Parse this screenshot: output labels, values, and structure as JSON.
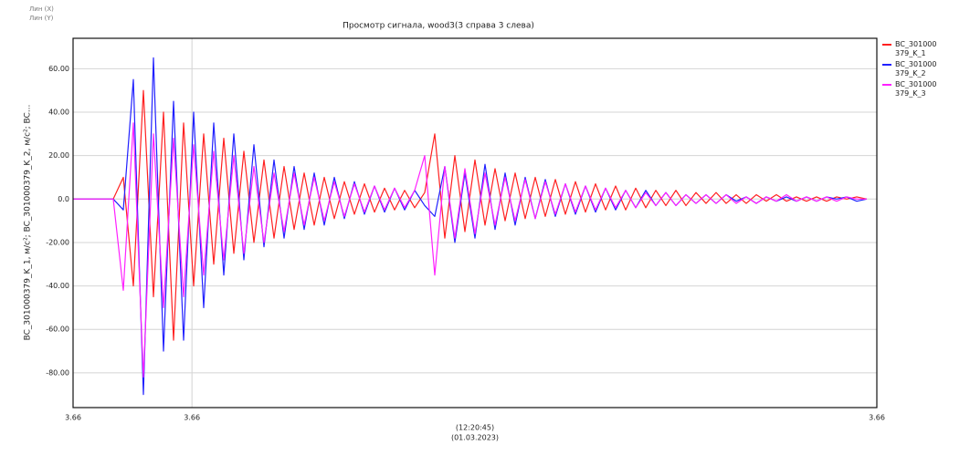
{
  "chart_data": {
    "type": "line",
    "corner_labels": [
      "Лин (X)",
      "Лин (Y)"
    ],
    "title": "Просмотр сигнала, wood3(3 справа 3 слева)",
    "ylabel": "BC_301000379_K_1, м/с²; BC_301000379_K_2, м/с²; BC...",
    "xlabel": [
      "(12:20:45)",
      "(01.03.2023)"
    ],
    "xlim": [
      3.6552,
      3.6648
    ],
    "xticks": [
      {
        "value": 3.6552,
        "label": "3.66"
      },
      {
        "value": 3.65662,
        "label": "3.66"
      },
      {
        "value": 3.6648,
        "label": "3.66"
      }
    ],
    "ylim": [
      -96,
      74
    ],
    "yticks": [
      {
        "value": 60,
        "label": "60.00"
      },
      {
        "value": 40,
        "label": "40.00"
      },
      {
        "value": 20,
        "label": "20.00"
      },
      {
        "value": 0,
        "label": "0.0"
      },
      {
        "value": -20,
        "label": "-20.00"
      },
      {
        "value": -40,
        "label": "-40.00"
      },
      {
        "value": -60,
        "label": "-60.00"
      },
      {
        "value": -80,
        "label": "-80.00"
      }
    ],
    "grid": true,
    "legend": "right",
    "x": [
      3.6552,
      3.65532,
      3.65544,
      3.65556,
      3.65568,
      3.6558,
      3.65592,
      3.65604,
      3.65616,
      3.65628,
      3.6564,
      3.65652,
      3.65664,
      3.65676,
      3.65688,
      3.657,
      3.65712,
      3.65724,
      3.65736,
      3.65748,
      3.6576,
      3.65772,
      3.65784,
      3.65796,
      3.65808,
      3.6582,
      3.65832,
      3.65844,
      3.65856,
      3.65868,
      3.6588,
      3.65892,
      3.65904,
      3.65916,
      3.65928,
      3.6594,
      3.65952,
      3.65964,
      3.65976,
      3.65988,
      3.66,
      3.66012,
      3.66024,
      3.66036,
      3.66048,
      3.6606,
      3.66072,
      3.66084,
      3.66096,
      3.66108,
      3.6612,
      3.66132,
      3.66144,
      3.66156,
      3.66168,
      3.6618,
      3.66192,
      3.66204,
      3.66216,
      3.66228,
      3.6624,
      3.66252,
      3.66264,
      3.66276,
      3.66288,
      3.663,
      3.66312,
      3.66324,
      3.66336,
      3.66348,
      3.6636,
      3.66372,
      3.66384,
      3.66396,
      3.66408,
      3.6642,
      3.66432,
      3.66444,
      3.66456,
      3.66468
    ],
    "series": [
      {
        "name": "BC_301000379_K_1",
        "color": "#ff2020",
        "values": [
          0,
          0,
          0,
          0,
          0,
          10,
          -40,
          50,
          -45,
          40,
          -65,
          35,
          -40,
          30,
          -30,
          28,
          -25,
          22,
          -20,
          18,
          -18,
          15,
          -14,
          12,
          -12,
          10,
          -9,
          8,
          -7,
          7,
          -6,
          5,
          -5,
          4,
          -4,
          3,
          30,
          -18,
          20,
          -15,
          18,
          -12,
          14,
          -10,
          12,
          -9,
          10,
          -8,
          9,
          -7,
          8,
          -6,
          7,
          -5,
          6,
          -5,
          5,
          -4,
          4,
          -3,
          4,
          -3,
          3,
          -2,
          3,
          -2,
          2,
          -2,
          2,
          -1,
          2,
          -1,
          1,
          -1,
          1,
          -1,
          1,
          0,
          1,
          0
        ]
      },
      {
        "name": "BC_301000379_K_2",
        "color": "#2020ff",
        "values": [
          0,
          0,
          0,
          0,
          0,
          -5,
          55,
          -90,
          65,
          -70,
          45,
          -65,
          40,
          -50,
          35,
          -35,
          30,
          -28,
          25,
          -22,
          18,
          -18,
          15,
          -14,
          12,
          -12,
          10,
          -9,
          8,
          -7,
          6,
          -6,
          5,
          -5,
          4,
          -3,
          -8,
          15,
          -20,
          12,
          -18,
          16,
          -14,
          12,
          -12,
          10,
          -9,
          9,
          -8,
          7,
          -7,
          6,
          -6,
          5,
          -5,
          4,
          -4,
          4,
          -3,
          3,
          -3,
          2,
          -2,
          2,
          -2,
          2,
          -1,
          1,
          -2,
          1,
          -1,
          1,
          -1,
          1,
          -1,
          1,
          0,
          1,
          -1,
          0
        ]
      },
      {
        "name": "BC_301000379_K_3",
        "color": "#ff20ff",
        "values": [
          0,
          0,
          0,
          0,
          0,
          -42,
          35,
          -82,
          30,
          -50,
          28,
          -45,
          25,
          -35,
          22,
          -28,
          20,
          -25,
          15,
          -20,
          12,
          -15,
          12,
          -12,
          10,
          -10,
          8,
          -8,
          7,
          -6,
          6,
          -5,
          5,
          -4,
          4,
          20,
          -35,
          15,
          -18,
          14,
          -16,
          12,
          -12,
          10,
          -10,
          9,
          -9,
          8,
          -7,
          7,
          -6,
          6,
          -5,
          5,
          -4,
          4,
          -4,
          3,
          -3,
          3,
          -3,
          2,
          -2,
          2,
          -2,
          2,
          -2,
          1,
          -2,
          1,
          -1,
          2,
          -1,
          1,
          -1,
          1,
          -1,
          1,
          0,
          0
        ]
      }
    ]
  }
}
